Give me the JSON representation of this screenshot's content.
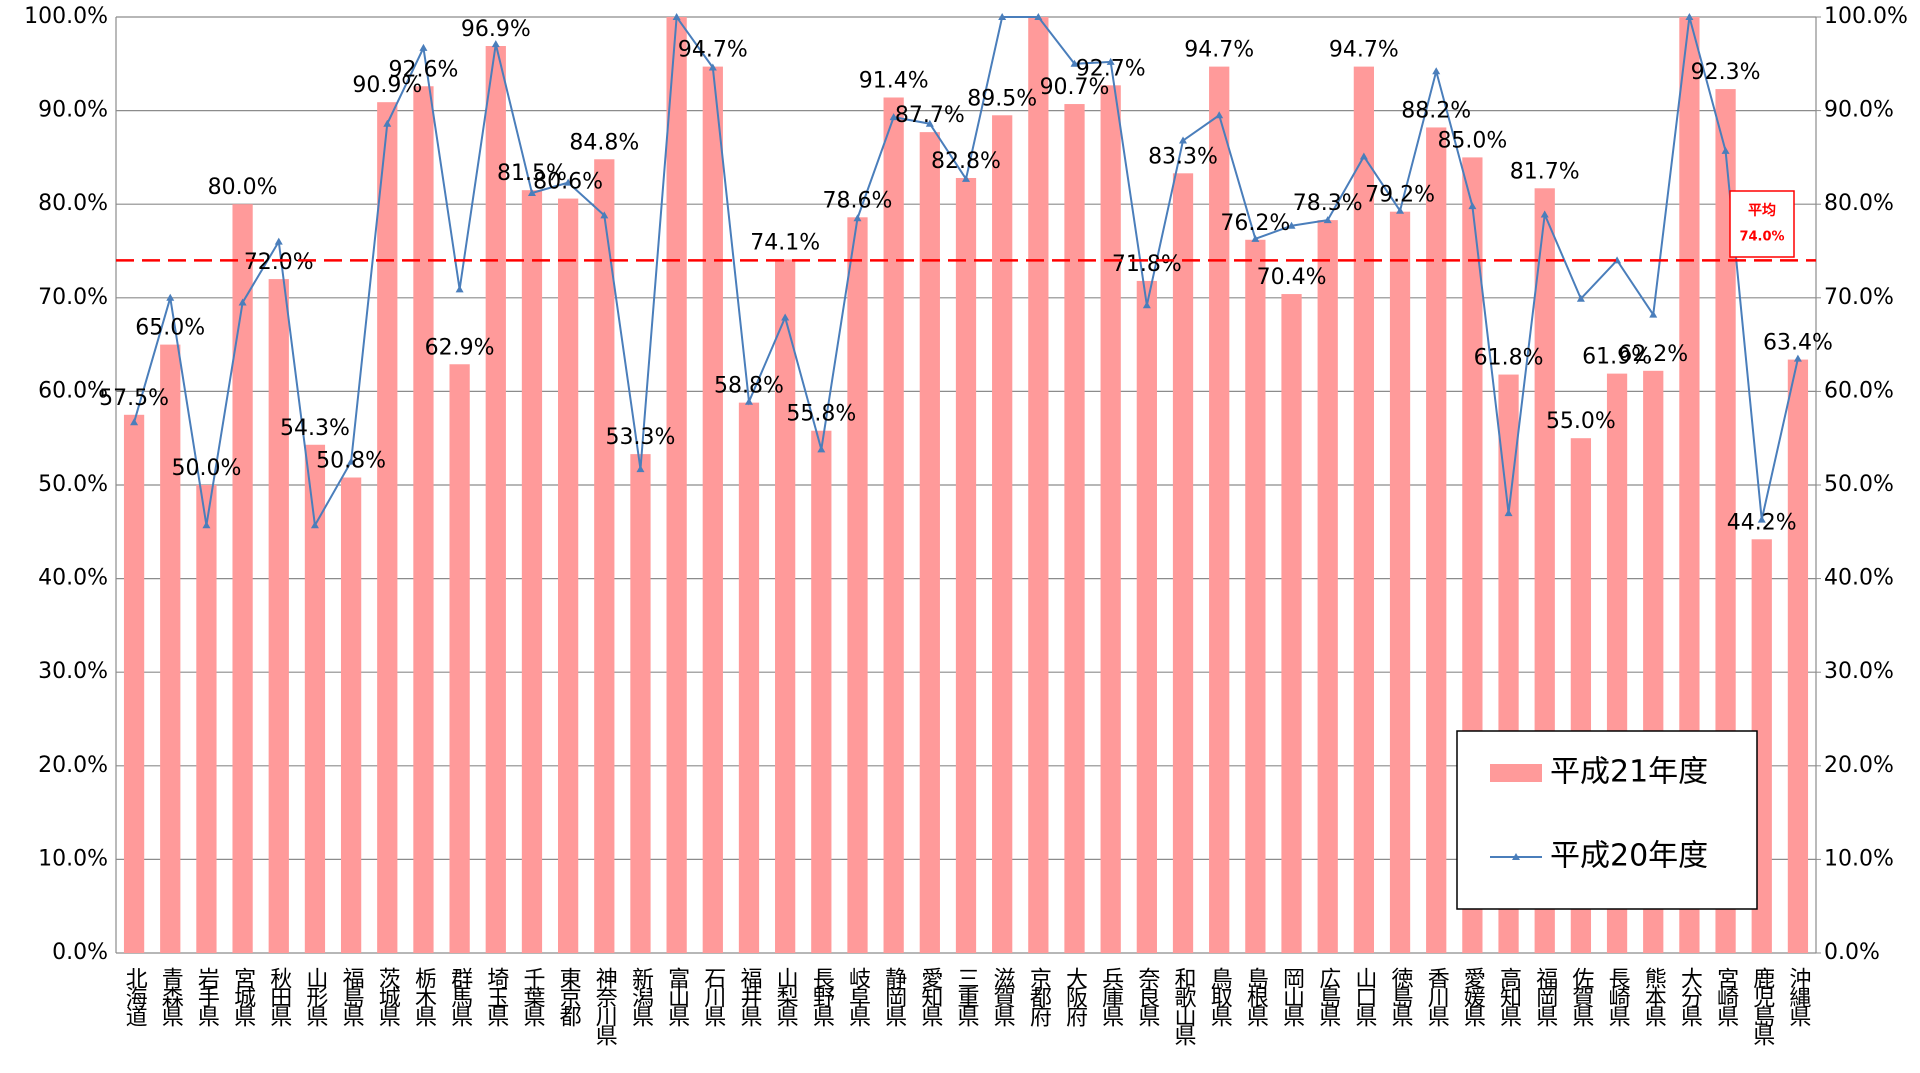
{
  "chart_data": {
    "type": "bar_line",
    "categories": [
      "北海道",
      "青森県",
      "岩手県",
      "宮城県",
      "秋田県",
      "山形県",
      "福島県",
      "茨城県",
      "栃木県",
      "群馬県",
      "埼玉県",
      "千葉県",
      "東京都",
      "神奈川県",
      "新潟県",
      "富山県",
      "石川県",
      "福井県",
      "山梨県",
      "長野県",
      "岐阜県",
      "静岡県",
      "愛知県",
      "三重県",
      "滋賀県",
      "京都府",
      "大阪府",
      "兵庫県",
      "奈良県",
      "和歌山県",
      "鳥取県",
      "島根県",
      "岡山県",
      "広島県",
      "山口県",
      "徳島県",
      "香川県",
      "愛媛県",
      "高知県",
      "福岡県",
      "佐賀県",
      "長崎県",
      "熊本県",
      "大分県",
      "宮崎県",
      "鹿児島県",
      "沖縄県"
    ],
    "series": [
      {
        "name": "平成21年度",
        "kind": "bar",
        "color": "#ff9a9a",
        "values": [
          57.5,
          65.0,
          50.0,
          80.0,
          72.0,
          54.3,
          50.8,
          90.9,
          92.6,
          62.9,
          96.9,
          81.5,
          80.6,
          84.8,
          53.3,
          100.0,
          94.7,
          58.8,
          74.1,
          55.8,
          78.6,
          91.4,
          87.7,
          82.8,
          89.5,
          100.0,
          90.7,
          92.7,
          71.8,
          83.3,
          94.7,
          76.2,
          70.4,
          78.3,
          94.7,
          79.2,
          88.2,
          85.0,
          61.8,
          81.7,
          55.0,
          61.9,
          62.2,
          100.0,
          92.3,
          44.2,
          63.4
        ],
        "value_labels": [
          "57.5%",
          "65.0%",
          "50.0%",
          "80.0%",
          "72.0%",
          "54.3%",
          "50.8%",
          "90.9%",
          "92.6%",
          "62.9%",
          "96.9%",
          "81.5%",
          "80.6%",
          "84.8%",
          "53.3%",
          null,
          "94.7%",
          "58.8%",
          "74.1%",
          "55.8%",
          "78.6%",
          "91.4%",
          "87.7%",
          "82.8%",
          "89.5%",
          null,
          "90.7%",
          "92.7%",
          "71.8%",
          "83.3%",
          "94.7%",
          "76.2%",
          "70.4%",
          "78.3%",
          "94.7%",
          "79.2%",
          "88.2%",
          "85.0%",
          "61.8%",
          "81.7%",
          "55.0%",
          "61.9%",
          "62.2%",
          null,
          "92.3%",
          "44.2%",
          "63.4%"
        ]
      },
      {
        "name": "平成20年度",
        "kind": "line",
        "color": "#4a7ebb",
        "values": [
          56.7,
          70.0,
          45.7,
          69.5,
          76.0,
          45.7,
          52.5,
          88.6,
          96.7,
          70.9,
          97.1,
          81.2,
          82.3,
          78.8,
          51.7,
          100,
          94.6,
          58.9,
          67.9,
          53.8,
          78.5,
          89.3,
          88.6,
          82.7,
          100,
          100,
          95.0,
          95.2,
          69.2,
          86.8,
          89.5,
          76.3,
          77.7,
          78.3,
          85.1,
          79.3,
          94.2,
          79.8,
          47.0,
          78.9,
          69.9,
          74.0,
          68.2,
          100,
          85.7,
          46.3,
          63.5
        ]
      }
    ],
    "average": {
      "label": "平均",
      "value": 74.0,
      "value_label": "74.0%",
      "color": "#ff0000"
    },
    "ylim": [
      0,
      100
    ],
    "yticks": [
      {
        "value": 0,
        "label": "0.0%"
      },
      {
        "value": 10,
        "label": "10.0%"
      },
      {
        "value": 20,
        "label": "20.0%"
      },
      {
        "value": 30,
        "label": "30.0%"
      },
      {
        "value": 40,
        "label": "40.0%"
      },
      {
        "value": 50,
        "label": "50.0%"
      },
      {
        "value": 60,
        "label": "60.0%"
      },
      {
        "value": 70,
        "label": "70.0%"
      },
      {
        "value": 80,
        "label": "80.0%"
      },
      {
        "value": 90,
        "label": "90.0%"
      },
      {
        "value": 100,
        "label": "100.0%"
      }
    ],
    "y2lim": [
      0,
      100
    ],
    "y2ticks": [
      {
        "value": 0,
        "label": "0.0%"
      },
      {
        "value": 10,
        "label": "10.0%"
      },
      {
        "value": 20,
        "label": "20.0%"
      },
      {
        "value": 30,
        "label": "30.0%"
      },
      {
        "value": 40,
        "label": "40.0%"
      },
      {
        "value": 50,
        "label": "50.0%"
      },
      {
        "value": 60,
        "label": "60.0%"
      },
      {
        "value": 70,
        "label": "70.0%"
      },
      {
        "value": 80,
        "label": "80.0%"
      },
      {
        "value": 90,
        "label": "90.0%"
      },
      {
        "value": 100,
        "label": "100.0%"
      }
    ],
    "grid": true
  }
}
